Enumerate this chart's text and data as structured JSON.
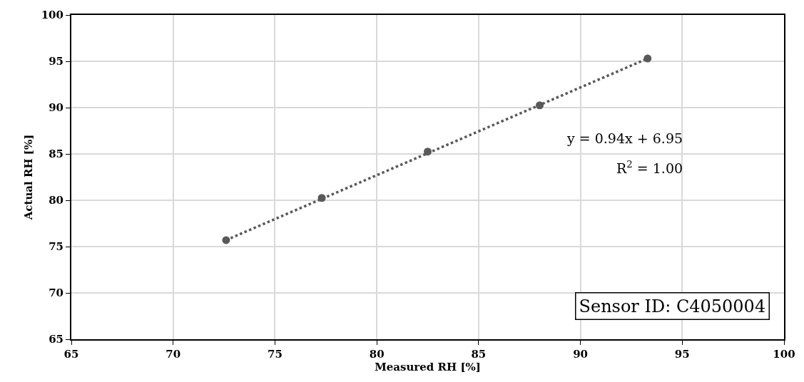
{
  "chart_data": {
    "type": "scatter",
    "xlabel": "Measured RH [%]",
    "ylabel": "Actual RH [%]",
    "xlim": [
      65,
      100
    ],
    "xticks": [
      65,
      70,
      75,
      80,
      85,
      90,
      95,
      100
    ],
    "ylim": [
      65,
      100
    ],
    "yticks": [
      65,
      70,
      75,
      80,
      85,
      90,
      95,
      100
    ],
    "grid": true,
    "series": [
      {
        "color": "#595959",
        "marker": "circle",
        "x": [
          72.6,
          77.3,
          82.5,
          88.0,
          93.3
        ],
        "values": [
          75.7,
          80.25,
          85.25,
          90.25,
          95.3
        ]
      },
      {
        "type": "line",
        "color": "#595959",
        "marker": "none",
        "line_style": "dotted",
        "x": [
          72.6,
          93.3
        ],
        "values": [
          75.7,
          95.3
        ]
      }
    ],
    "annotations": [
      "y = 0.94x + 6.95",
      "R$^{2}$ = 1.00",
      "Sensor ID: C4050004"
    ]
  }
}
